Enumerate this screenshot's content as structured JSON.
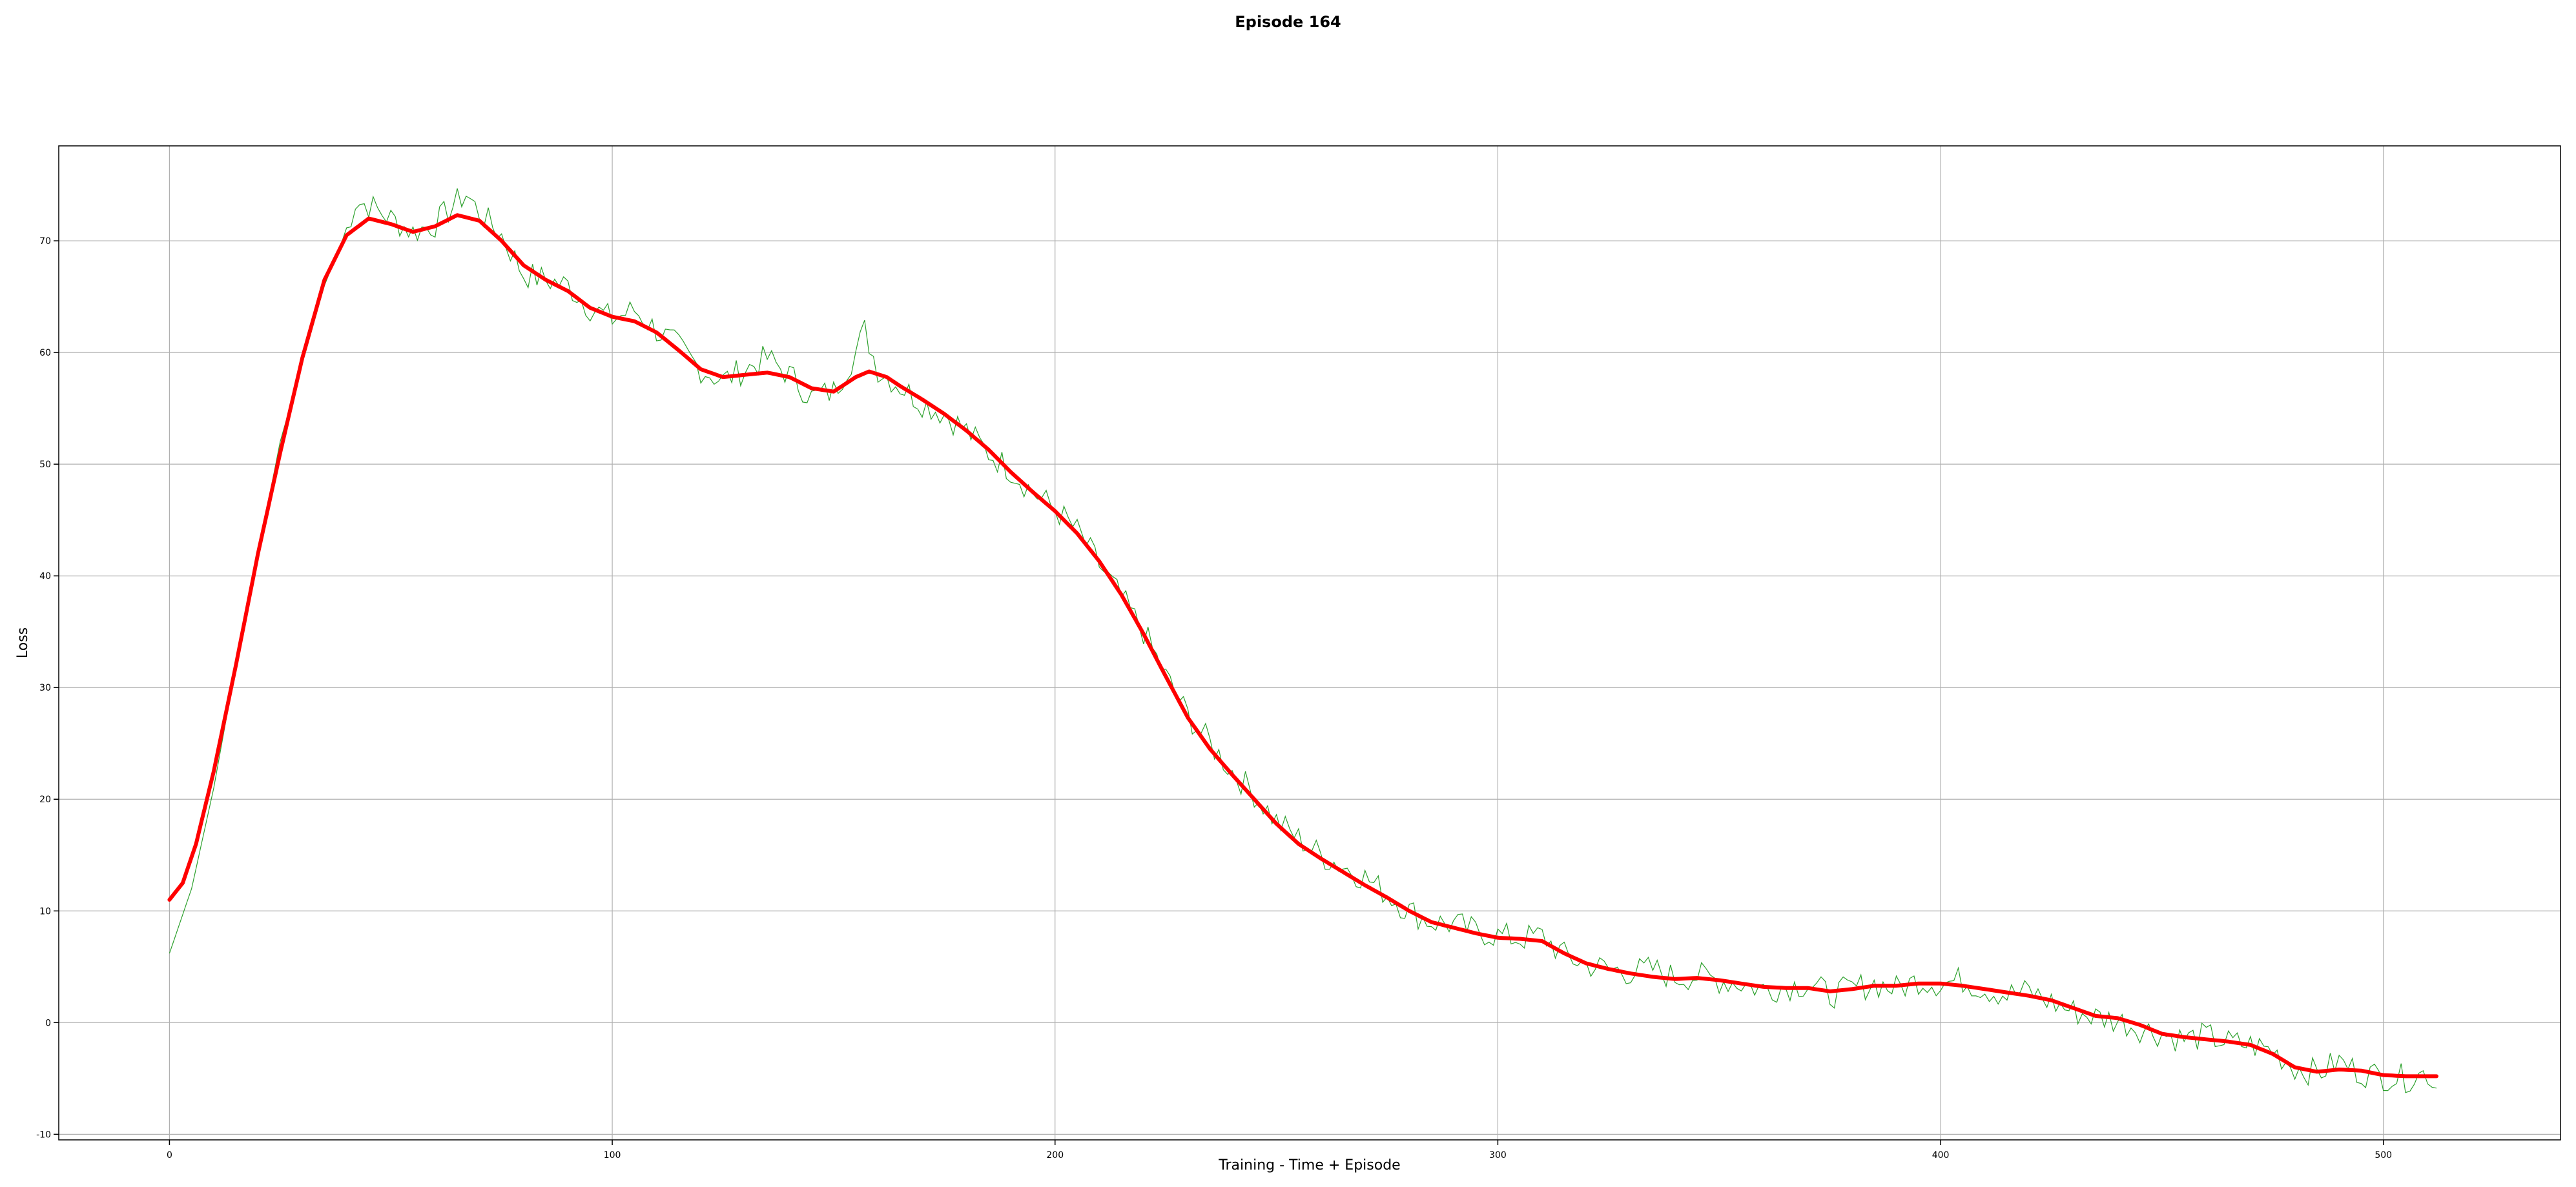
{
  "chart_data": {
    "type": "line",
    "title": "Episode 164",
    "xlabel": "Training - Time + Episode",
    "ylabel": "Loss",
    "xlim": [
      -25,
      540
    ],
    "ylim": [
      -10.5,
      78.5
    ],
    "xticks": [
      0,
      100,
      200,
      300,
      400,
      500
    ],
    "yticks": [
      -10,
      0,
      10,
      20,
      30,
      40,
      50,
      60,
      70
    ],
    "grid": true,
    "colors": {
      "raw": "#2ca02c",
      "smoothed": "#ff0000",
      "grid": "#b0b0b0"
    },
    "raw_keypoints": [
      [
        0,
        6.2
      ],
      [
        5,
        12
      ],
      [
        10,
        21
      ],
      [
        15,
        32
      ],
      [
        20,
        42
      ],
      [
        25,
        52
      ],
      [
        30,
        59
      ],
      [
        35,
        66
      ],
      [
        40,
        71
      ],
      [
        42,
        73.5
      ],
      [
        45,
        73.2
      ],
      [
        48,
        72.5
      ],
      [
        50,
        72
      ],
      [
        55,
        70.8
      ],
      [
        60,
        71.5
      ],
      [
        65,
        73.5
      ],
      [
        67,
        74.2
      ],
      [
        70,
        72.5
      ],
      [
        75,
        70.5
      ],
      [
        80,
        67
      ],
      [
        85,
        66.5
      ],
      [
        90,
        66
      ],
      [
        95,
        64
      ],
      [
        100,
        63
      ],
      [
        105,
        63.8
      ],
      [
        110,
        62
      ],
      [
        115,
        60.5
      ],
      [
        120,
        58.5
      ],
      [
        125,
        57.5
      ],
      [
        130,
        58.5
      ],
      [
        135,
        59.5
      ],
      [
        140,
        58
      ],
      [
        145,
        56
      ],
      [
        150,
        56.5
      ],
      [
        155,
        60
      ],
      [
        157,
        62
      ],
      [
        160,
        58.5
      ],
      [
        165,
        57
      ],
      [
        170,
        55.5
      ],
      [
        175,
        54.5
      ],
      [
        180,
        53
      ],
      [
        185,
        51
      ],
      [
        190,
        49.5
      ],
      [
        195,
        47.5
      ],
      [
        200,
        46
      ],
      [
        205,
        44
      ],
      [
        210,
        41
      ],
      [
        215,
        38
      ],
      [
        220,
        35
      ],
      [
        225,
        31
      ],
      [
        230,
        27.5
      ],
      [
        235,
        25
      ],
      [
        240,
        22.5
      ],
      [
        245,
        20.5
      ],
      [
        250,
        18
      ],
      [
        255,
        16.5
      ],
      [
        260,
        15
      ],
      [
        265,
        14
      ],
      [
        270,
        13
      ],
      [
        275,
        11.5
      ],
      [
        280,
        10
      ],
      [
        285,
        9
      ],
      [
        290,
        8.8
      ],
      [
        295,
        8.2
      ],
      [
        300,
        7.8
      ],
      [
        305,
        7.5
      ],
      [
        310,
        7.8
      ],
      [
        315,
        6
      ],
      [
        320,
        5.2
      ],
      [
        325,
        4.8
      ],
      [
        330,
        4.5
      ],
      [
        335,
        4.8
      ],
      [
        340,
        4
      ],
      [
        345,
        4.2
      ],
      [
        350,
        3.8
      ],
      [
        355,
        3.5
      ],
      [
        360,
        3
      ],
      [
        365,
        3.2
      ],
      [
        370,
        3.5
      ],
      [
        375,
        2.5
      ],
      [
        380,
        3
      ],
      [
        385,
        3.5
      ],
      [
        390,
        3
      ],
      [
        395,
        3.8
      ],
      [
        400,
        3.5
      ],
      [
        405,
        3.8
      ],
      [
        410,
        3
      ],
      [
        415,
        2.5
      ],
      [
        420,
        2.8
      ],
      [
        425,
        1.8
      ],
      [
        430,
        1
      ],
      [
        435,
        0.5
      ],
      [
        440,
        0.2
      ],
      [
        445,
        -0.5
      ],
      [
        450,
        -1
      ],
      [
        455,
        -1.5
      ],
      [
        460,
        -1.2
      ],
      [
        465,
        -1.8
      ],
      [
        470,
        -2
      ],
      [
        475,
        -2.5
      ],
      [
        480,
        -4
      ],
      [
        485,
        -4.5
      ],
      [
        490,
        -3.5
      ],
      [
        495,
        -4.5
      ],
      [
        500,
        -4.8
      ],
      [
        505,
        -5
      ],
      [
        510,
        -4.5
      ],
      [
        512,
        -5.8
      ]
    ],
    "smoothed_keypoints": [
      [
        0,
        11
      ],
      [
        3,
        12.5
      ],
      [
        6,
        16
      ],
      [
        10,
        22.5
      ],
      [
        15,
        32
      ],
      [
        20,
        42
      ],
      [
        25,
        51
      ],
      [
        30,
        59.5
      ],
      [
        35,
        66.5
      ],
      [
        40,
        70.5
      ],
      [
        45,
        72
      ],
      [
        50,
        71.5
      ],
      [
        55,
        70.8
      ],
      [
        60,
        71.3
      ],
      [
        65,
        72.3
      ],
      [
        70,
        71.8
      ],
      [
        75,
        70
      ],
      [
        80,
        67.8
      ],
      [
        85,
        66.5
      ],
      [
        90,
        65.5
      ],
      [
        95,
        64
      ],
      [
        100,
        63.2
      ],
      [
        105,
        62.8
      ],
      [
        110,
        61.8
      ],
      [
        115,
        60.2
      ],
      [
        120,
        58.5
      ],
      [
        125,
        57.8
      ],
      [
        130,
        58
      ],
      [
        135,
        58.2
      ],
      [
        140,
        57.8
      ],
      [
        145,
        56.8
      ],
      [
        150,
        56.5
      ],
      [
        155,
        57.8
      ],
      [
        158,
        58.3
      ],
      [
        162,
        57.8
      ],
      [
        165,
        57
      ],
      [
        170,
        55.8
      ],
      [
        175,
        54.5
      ],
      [
        180,
        53
      ],
      [
        185,
        51.3
      ],
      [
        190,
        49.3
      ],
      [
        195,
        47.5
      ],
      [
        200,
        45.8
      ],
      [
        205,
        43.8
      ],
      [
        210,
        41.3
      ],
      [
        215,
        38.3
      ],
      [
        220,
        34.8
      ],
      [
        225,
        31
      ],
      [
        230,
        27.3
      ],
      [
        235,
        24.5
      ],
      [
        240,
        22.2
      ],
      [
        245,
        20
      ],
      [
        250,
        17.8
      ],
      [
        255,
        16
      ],
      [
        260,
        14.7
      ],
      [
        265,
        13.5
      ],
      [
        270,
        12.3
      ],
      [
        275,
        11.2
      ],
      [
        280,
        10
      ],
      [
        285,
        9
      ],
      [
        290,
        8.5
      ],
      [
        295,
        8
      ],
      [
        300,
        7.6
      ],
      [
        305,
        7.5
      ],
      [
        310,
        7.3
      ],
      [
        315,
        6.2
      ],
      [
        320,
        5.3
      ],
      [
        325,
        4.8
      ],
      [
        330,
        4.4
      ],
      [
        335,
        4.1
      ],
      [
        340,
        3.9
      ],
      [
        345,
        4
      ],
      [
        350,
        3.8
      ],
      [
        355,
        3.5
      ],
      [
        360,
        3.2
      ],
      [
        365,
        3.1
      ],
      [
        370,
        3.1
      ],
      [
        375,
        2.8
      ],
      [
        380,
        3
      ],
      [
        385,
        3.3
      ],
      [
        390,
        3.3
      ],
      [
        395,
        3.5
      ],
      [
        400,
        3.5
      ],
      [
        405,
        3.3
      ],
      [
        410,
        3
      ],
      [
        415,
        2.7
      ],
      [
        420,
        2.4
      ],
      [
        425,
        2
      ],
      [
        430,
        1.3
      ],
      [
        435,
        0.6
      ],
      [
        440,
        0.4
      ],
      [
        445,
        -0.2
      ],
      [
        450,
        -1
      ],
      [
        455,
        -1.3
      ],
      [
        460,
        -1.5
      ],
      [
        465,
        -1.7
      ],
      [
        470,
        -2
      ],
      [
        475,
        -2.8
      ],
      [
        480,
        -4
      ],
      [
        485,
        -4.4
      ],
      [
        490,
        -4.2
      ],
      [
        495,
        -4.3
      ],
      [
        500,
        -4.7
      ],
      [
        505,
        -4.8
      ],
      [
        512,
        -4.8
      ]
    ]
  }
}
